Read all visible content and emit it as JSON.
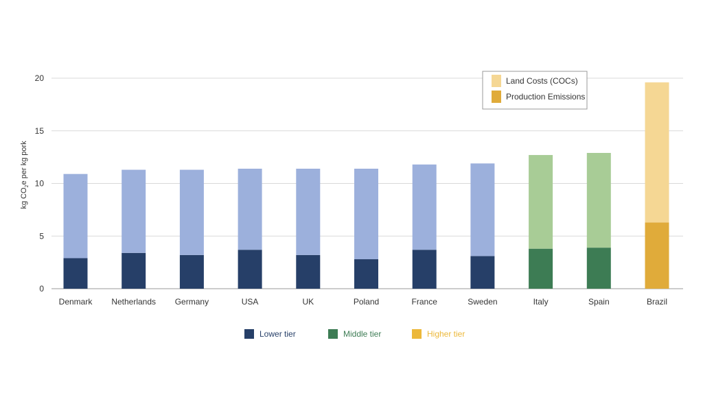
{
  "chart_data": {
    "type": "bar",
    "stacked": true,
    "ylabel_main": "kg CO",
    "ylabel_sub": "2",
    "ylabel_tail": "e per kg pork",
    "ylim": [
      0,
      20
    ],
    "yticks": [
      0,
      5,
      10,
      15,
      20
    ],
    "grid": true,
    "categories": [
      "Denmark",
      "Netherlands",
      "Germany",
      "USA",
      "UK",
      "Poland",
      "France",
      "Sweden",
      "Italy",
      "Spain",
      "Brazil"
    ],
    "tiers": [
      "lower",
      "lower",
      "lower",
      "lower",
      "lower",
      "lower",
      "lower",
      "lower",
      "middle",
      "middle",
      "higher"
    ],
    "series": [
      {
        "name": "Production Emissions",
        "values": [
          2.9,
          3.4,
          3.2,
          3.7,
          3.2,
          2.8,
          3.7,
          3.1,
          3.8,
          3.9,
          6.3
        ]
      },
      {
        "name": "Land Costs (COCs)",
        "values": [
          8.0,
          7.9,
          8.1,
          7.7,
          8.2,
          8.6,
          8.1,
          8.8,
          8.9,
          9.0,
          13.3
        ]
      }
    ],
    "legend_series": {
      "position": "top-right",
      "items": [
        {
          "label": "Land Costs (COCs)",
          "color": "#f5d794"
        },
        {
          "label": "Production Emissions",
          "color": "#e0ab3a"
        }
      ]
    },
    "legend_tiers": {
      "position": "bottom",
      "items": [
        {
          "label": "Lower tier",
          "color": "#263f68"
        },
        {
          "label": "Middle tier",
          "color": "#3d7c54"
        },
        {
          "label": "Higher tier",
          "color": "#ecb83a"
        }
      ]
    },
    "colors": {
      "lower": {
        "base": "#263f68",
        "top": "#9cb0dc"
      },
      "middle": {
        "base": "#3d7c54",
        "top": "#a8cc96"
      },
      "higher": {
        "base": "#e0ab3a",
        "top": "#f5d794"
      },
      "grid": "#d9d9d9",
      "text": "#333333"
    }
  }
}
